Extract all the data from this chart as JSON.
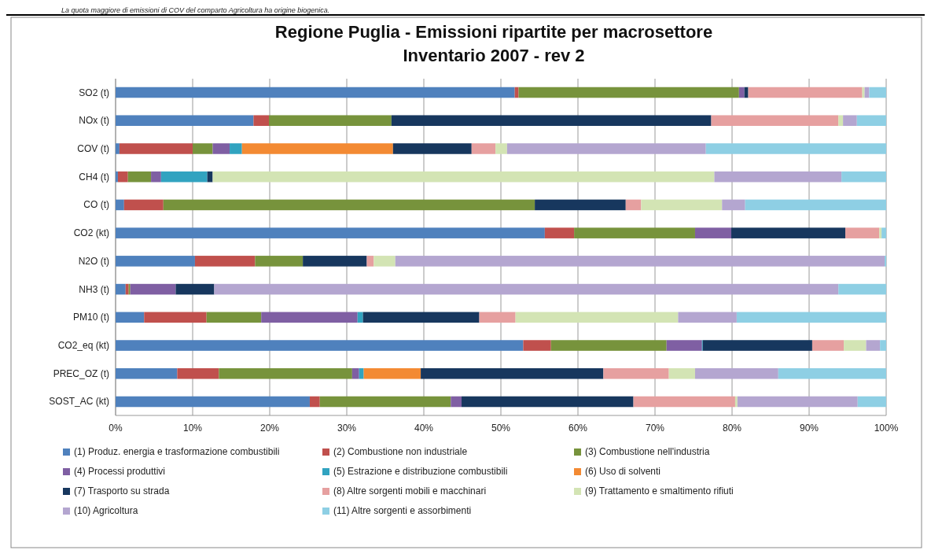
{
  "chart_data": {
    "type": "bar",
    "orientation": "horizontal",
    "stacked": true,
    "title": "Regione Puglia -  Emissioni ripartite per macrosettore\nInventario 2007  - rev 2",
    "annotations": [
      "La quota maggiore di emissioni di COV del comparto Agricoltura ha origine biogenica."
    ],
    "categories": [
      "SO2 (t)",
      "NOx (t)",
      "COV (t)",
      "CH4 (t)",
      "CO (t)",
      "CO2 (kt)",
      "N2O (t)",
      "NH3 (t)",
      "PM10 (t)",
      "CO2_eq (kt)",
      "PREC_OZ (t)",
      "SOST_AC (kt)"
    ],
    "xlim": [
      0,
      100
    ],
    "xticks": [
      {
        "value": 0,
        "label": "0%"
      },
      {
        "value": 10,
        "label": "10%"
      },
      {
        "value": 20,
        "label": "20%"
      },
      {
        "value": 30,
        "label": "30%"
      },
      {
        "value": 40,
        "label": "40%"
      },
      {
        "value": 50,
        "label": "50%"
      },
      {
        "value": 60,
        "label": "60%"
      },
      {
        "value": 70,
        "label": "70%"
      },
      {
        "value": 80,
        "label": "80%"
      },
      {
        "value": 90,
        "label": "90%"
      },
      {
        "value": 100,
        "label": "100%"
      }
    ],
    "grid": "x",
    "legend": "bottom",
    "series": [
      {
        "name": "(1) Produz. energia e trasformazione  combustibili",
        "color": "#4f81bd",
        "values": [
          51.8,
          17.9,
          0.5,
          0.3,
          1.1,
          55.7,
          10.3,
          1.3,
          3.7,
          52.9,
          8.0,
          25.2
        ]
      },
      {
        "name": "(2) Combustione non industriale",
        "color": "#c0504d",
        "values": [
          0.5,
          2.0,
          9.5,
          1.3,
          5.1,
          3.8,
          7.8,
          0.4,
          8.1,
          3.6,
          5.4,
          1.3
        ]
      },
      {
        "name": "(3) Combustione nell'industria",
        "color": "#77933c",
        "values": [
          28.6,
          15.9,
          2.6,
          3.0,
          48.2,
          15.7,
          6.2,
          0.2,
          7.1,
          15.0,
          17.3,
          17.0
        ]
      },
      {
        "name": "(4) Processi produttivi",
        "color": "#7f5fa3",
        "values": [
          0.7,
          0,
          2.2,
          1.3,
          0,
          4.7,
          0,
          5.9,
          12.5,
          4.6,
          0.9,
          1.4
        ]
      },
      {
        "name": "(5) Estrazione e distribuzione combustibili",
        "color": "#31a3c0",
        "values": [
          0,
          0,
          1.6,
          6.0,
          0,
          0,
          0,
          0,
          0.7,
          0.1,
          0.6,
          0
        ]
      },
      {
        "name": "(6) Uso di solventi",
        "color": "#f38a33",
        "values": [
          0,
          0,
          19.6,
          0,
          0,
          0,
          0,
          0,
          0,
          0,
          7.4,
          0
        ]
      },
      {
        "name": "(7) Trasporto su strada",
        "color": "#17375e",
        "values": [
          0.5,
          41.5,
          10.2,
          0.7,
          11.8,
          14.8,
          8.3,
          5.0,
          15.1,
          14.2,
          23.7,
          22.3
        ]
      },
      {
        "name": "(8) Altre sorgenti mobili e macchinari",
        "color": "#e6a0a0",
        "values": [
          14.8,
          16.5,
          3.1,
          0,
          2.0,
          4.4,
          0.9,
          0,
          4.7,
          4.1,
          8.5,
          13.2
        ]
      },
      {
        "name": "(9) Trattamento  e smaltimento  rifiuti",
        "color": "#d3e4b4",
        "values": [
          0.3,
          0.6,
          1.5,
          65.1,
          10.5,
          0.3,
          2.8,
          0,
          21.1,
          2.9,
          3.4,
          0.3
        ]
      },
      {
        "name": "(10) Agricoltura",
        "color": "#b4a6d0",
        "values": [
          0.6,
          1.8,
          25.8,
          16.5,
          3.0,
          0,
          63.5,
          81.0,
          7.6,
          1.8,
          10.8,
          15.6
        ]
      },
      {
        "name": "(11) Altre sorgenti e assorbimenti",
        "color": "#8ecfe4",
        "values": [
          2.2,
          3.8,
          23.4,
          5.8,
          18.3,
          0.6,
          0.2,
          6.2,
          19.4,
          0.8,
          14.0,
          3.7
        ]
      }
    ]
  }
}
